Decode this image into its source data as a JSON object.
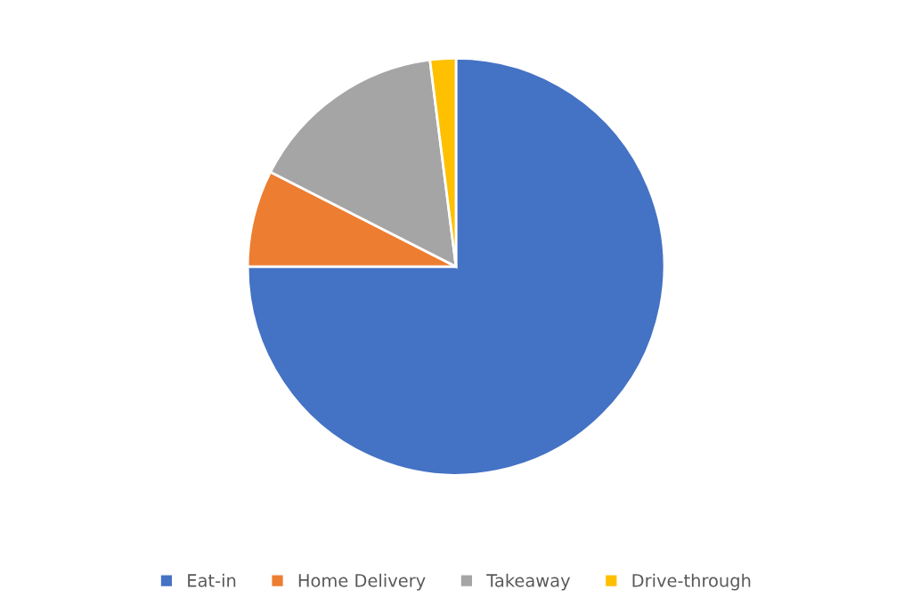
{
  "chart_data": {
    "type": "pie",
    "categories": [
      "Eat-in",
      "Home Delivery",
      "Takeaway",
      "Drive-through"
    ],
    "values": [
      75,
      7.5,
      15.5,
      2
    ],
    "colors": [
      "#4472c4",
      "#ed7d31",
      "#a5a5a5",
      "#ffc000"
    ],
    "legend": "bottom"
  }
}
